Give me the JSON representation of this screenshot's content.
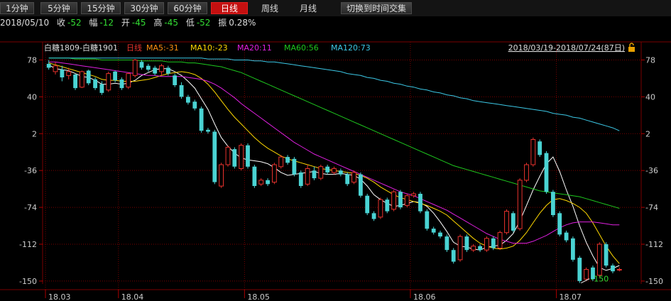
{
  "toolbar": {
    "tabs": [
      "1分钟",
      "5分钟",
      "15分钟",
      "30分钟",
      "60分钟",
      "日线",
      "周线",
      "月线"
    ],
    "active": "日线",
    "switch_label": "切换到时间交集"
  },
  "quote": {
    "date": "2018/05/10",
    "close_label": "收",
    "close_value": "-52",
    "width_label": "幅",
    "width_value": "-12",
    "open_label": "开",
    "open_value": "-45",
    "high_label": "高",
    "high_value": "-45",
    "low_label": "低",
    "low_value": "-52",
    "amp_label": "振",
    "amp_value": "0.28%"
  },
  "legend": {
    "name": "白糖1809-白糖1901",
    "period": "日线",
    "ma5": "MA5:-31",
    "ma10": "MA10:-23",
    "ma20": "MA20:11",
    "ma60": "MA60:56",
    "ma120": "MA120:73",
    "range": "2018/03/19-2018/07/24(87日)"
  },
  "colors": {
    "up": "#e8322d",
    "down": "#4ad3d3",
    "ma5": "#ffffff",
    "ma10": "#ffd800",
    "ma20": "#e020e0",
    "ma60": "#1ec81e",
    "ma120": "#3cc8e6",
    "grid": "#7a0000",
    "axis_text": "#cccccc"
  },
  "icons": {
    "lock": "lock-icon"
  },
  "chart_data": {
    "type": "candlestick",
    "y_ticks": [
      78,
      40,
      2,
      -36,
      -74,
      -112,
      -150
    ],
    "ylim": [
      -153,
      82
    ],
    "x_ticks": [
      "18.03",
      "18.04",
      "18.05",
      "18.06",
      "18.07"
    ],
    "x_tick_index": [
      0,
      11,
      30,
      55,
      77
    ],
    "min_label": "-150",
    "grid": true,
    "candles": [
      [
        74,
        70,
        78,
        68
      ],
      [
        66,
        72,
        76,
        63
      ],
      [
        68,
        60,
        72,
        56
      ],
      [
        62,
        66,
        70,
        58
      ],
      [
        63,
        49,
        64,
        47
      ],
      [
        50,
        66,
        67,
        49
      ],
      [
        67,
        54,
        68,
        52
      ],
      [
        58,
        49,
        60,
        47
      ],
      [
        53,
        44,
        56,
        42
      ],
      [
        47,
        64,
        66,
        45
      ],
      [
        66,
        57,
        67,
        55
      ],
      [
        58,
        49,
        60,
        47
      ],
      [
        50,
        64,
        65,
        48
      ],
      [
        62,
        78,
        79,
        60
      ],
      [
        76,
        70,
        78,
        68
      ],
      [
        72,
        68,
        74,
        66
      ],
      [
        70,
        64,
        72,
        62
      ],
      [
        66,
        72,
        74,
        62
      ],
      [
        70,
        64,
        72,
        62
      ],
      [
        62,
        52,
        64,
        50
      ],
      [
        52,
        40,
        55,
        38
      ],
      [
        40,
        34,
        42,
        32
      ],
      [
        35,
        28,
        37,
        26
      ],
      [
        28,
        5,
        30,
        3
      ],
      [
        6,
        4,
        8,
        2
      ],
      [
        4,
        -48,
        6,
        -50
      ],
      [
        -52,
        -30,
        -28,
        -54
      ],
      [
        -30,
        -12,
        -10,
        -32
      ],
      [
        -14,
        -32,
        -12,
        -34
      ],
      [
        -34,
        -10,
        -8,
        -36
      ],
      [
        -10,
        -32,
        -8,
        -34
      ],
      [
        -32,
        -52,
        -30,
        -54
      ],
      [
        -50,
        -46,
        -44,
        -52
      ],
      [
        -46,
        -50,
        -44,
        -52
      ],
      [
        -48,
        -30,
        -28,
        -50
      ],
      [
        -32,
        -22,
        -20,
        -34
      ],
      [
        -22,
        -28,
        -20,
        -30
      ],
      [
        -24,
        -40,
        -22,
        -42
      ],
      [
        -38,
        -52,
        -36,
        -54
      ],
      [
        -50,
        -34,
        -30,
        -52
      ],
      [
        -36,
        -44,
        -32,
        -46
      ],
      [
        -44,
        -32,
        -30,
        -46
      ],
      [
        -32,
        -38,
        -30,
        -40
      ],
      [
        -38,
        -34,
        -32,
        -40
      ],
      [
        -36,
        -40,
        -34,
        -42
      ],
      [
        -40,
        -50,
        -38,
        -52
      ],
      [
        -48,
        -38,
        -36,
        -50
      ],
      [
        -40,
        -62,
        -38,
        -64
      ],
      [
        -62,
        -80,
        -60,
        -82
      ],
      [
        -80,
        -86,
        -78,
        -88
      ],
      [
        -84,
        -66,
        -64,
        -86
      ],
      [
        -66,
        -78,
        -64,
        -80
      ],
      [
        -76,
        -58,
        -56,
        -78
      ],
      [
        -58,
        -74,
        -56,
        -76
      ],
      [
        -72,
        -62,
        -60,
        -74
      ],
      [
        -62,
        -60,
        -58,
        -64
      ],
      [
        -60,
        -78,
        -58,
        -80
      ],
      [
        -78,
        -96,
        -76,
        -98
      ],
      [
        -96,
        -100,
        -94,
        -102
      ],
      [
        -100,
        -104,
        -98,
        -106
      ],
      [
        -104,
        -118,
        -102,
        -120
      ],
      [
        -118,
        -130,
        -116,
        -132
      ],
      [
        -128,
        -104,
        -102,
        -130
      ],
      [
        -104,
        -118,
        -102,
        -120
      ],
      [
        -118,
        -114,
        -112,
        -120
      ],
      [
        -114,
        -118,
        -112,
        -120
      ],
      [
        -118,
        -106,
        -104,
        -120
      ],
      [
        -106,
        -116,
        -104,
        -118
      ],
      [
        -116,
        -100,
        -98,
        -118
      ],
      [
        -100,
        -78,
        -76,
        -102
      ],
      [
        -80,
        -98,
        -78,
        -100
      ],
      [
        -96,
        -46,
        -44,
        -98
      ],
      [
        -46,
        -30,
        -28,
        -48
      ],
      [
        -30,
        -4,
        -2,
        -32
      ],
      [
        -6,
        -20,
        -4,
        -22
      ],
      [
        -18,
        -58,
        -16,
        -60
      ],
      [
        -58,
        -82,
        -56,
        -84
      ],
      [
        -80,
        -102,
        -78,
        -104
      ],
      [
        -100,
        -108,
        -98,
        -110
      ],
      [
        -106,
        -128,
        -104,
        -130
      ],
      [
        -126,
        -150,
        -124,
        -152
      ],
      [
        -148,
        -138,
        -136,
        -150
      ],
      [
        -136,
        -148,
        -134,
        -150
      ],
      [
        -144,
        -112,
        -110,
        -146
      ],
      [
        -112,
        -134,
        -110,
        -136
      ],
      [
        -134,
        -140,
        -132,
        -142
      ],
      [
        -138,
        -138,
        -136,
        -140
      ]
    ],
    "ma_lines": {
      "MA5": [
        73,
        69,
        68,
        67,
        64,
        61,
        60,
        57,
        53,
        53,
        54,
        53,
        54,
        57,
        62,
        65,
        68,
        69,
        69,
        66,
        62,
        56,
        49,
        38,
        27,
        12,
        -2,
        -11,
        -18,
        -23,
        -25,
        -26,
        -27,
        -29,
        -33,
        -38,
        -41,
        -40,
        -39,
        -38,
        -37,
        -39,
        -40,
        -40,
        -39,
        -40,
        -41,
        -45,
        -52,
        -61,
        -66,
        -70,
        -73,
        -72,
        -70,
        -68,
        -69,
        -73,
        -80,
        -89,
        -99,
        -110,
        -114,
        -115,
        -117,
        -118,
        -115,
        -114,
        -113,
        -108,
        -101,
        -88,
        -72,
        -56,
        -42,
        -29,
        -22,
        -37,
        -56,
        -73,
        -93,
        -110,
        -124,
        -136,
        -139,
        -137,
        -134
      ],
      "MA10": [
        75,
        73,
        71,
        69,
        67,
        65,
        63,
        61,
        58,
        57,
        57,
        56,
        56,
        56,
        57,
        58,
        60,
        62,
        64,
        65,
        66,
        65,
        63,
        59,
        53,
        45,
        36,
        27,
        19,
        12,
        5,
        -2,
        -8,
        -13,
        -17,
        -21,
        -24,
        -26,
        -28,
        -30,
        -32,
        -34,
        -35,
        -36,
        -37,
        -38,
        -39,
        -41,
        -44,
        -48,
        -53,
        -57,
        -61,
        -64,
        -66,
        -68,
        -70,
        -72,
        -75,
        -78,
        -82,
        -88,
        -94,
        -100,
        -106,
        -111,
        -114,
        -116,
        -117,
        -116,
        -114,
        -108,
        -100,
        -90,
        -80,
        -72,
        -66,
        -65,
        -67,
        -70,
        -74,
        -80,
        -90,
        -102,
        -114,
        -124,
        -132
      ],
      "MA20": [
        76,
        76,
        75,
        74,
        73,
        72,
        71,
        70,
        69,
        68,
        67,
        66,
        65,
        64,
        63,
        62,
        62,
        61,
        61,
        61,
        61,
        60,
        59,
        58,
        56,
        53,
        49,
        44,
        39,
        33,
        28,
        23,
        18,
        13,
        8,
        3,
        -2,
        -7,
        -11,
        -15,
        -19,
        -22,
        -25,
        -28,
        -31,
        -34,
        -37,
        -40,
        -43,
        -46,
        -49,
        -52,
        -55,
        -58,
        -60,
        -62,
        -65,
        -68,
        -71,
        -74,
        -77,
        -81,
        -85,
        -89,
        -93,
        -97,
        -101,
        -104,
        -107,
        -109,
        -111,
        -111,
        -111,
        -109,
        -106,
        -103,
        -99,
        -95,
        -92,
        -90,
        -89,
        -89,
        -89,
        -90,
        -91,
        -92,
        -92
      ],
      "MA60": [
        80,
        80,
        80,
        80,
        79,
        79,
        79,
        79,
        78,
        78,
        78,
        78,
        78,
        78,
        77,
        77,
        77,
        77,
        76,
        76,
        76,
        75,
        75,
        74,
        73,
        72,
        71,
        69,
        67,
        65,
        62,
        59,
        56,
        53,
        50,
        47,
        44,
        41,
        38,
        35,
        32,
        29,
        26,
        23,
        20,
        17,
        14,
        11,
        8,
        5,
        2,
        -1,
        -4,
        -7,
        -10,
        -13,
        -16,
        -19,
        -22,
        -25,
        -28,
        -31,
        -33,
        -35,
        -37,
        -39,
        -41,
        -43,
        -45,
        -47,
        -49,
        -51,
        -53,
        -55,
        -57,
        -58,
        -59,
        -60,
        -61,
        -62,
        -63,
        -65,
        -67,
        -69,
        -71,
        -73,
        -75
      ],
      "MA120": [
        80,
        80,
        80,
        80,
        80,
        80,
        80,
        80,
        80,
        80,
        80,
        80,
        80,
        80,
        80,
        80,
        80,
        80,
        80,
        80,
        80,
        80,
        80,
        80,
        79,
        79,
        79,
        79,
        78,
        78,
        78,
        77,
        77,
        76,
        76,
        75,
        74,
        73,
        72,
        71,
        70,
        69,
        68,
        67,
        66,
        64,
        63,
        62,
        60,
        59,
        57,
        56,
        54,
        53,
        51,
        50,
        48,
        47,
        45,
        44,
        42,
        41,
        39,
        38,
        36,
        35,
        34,
        33,
        32,
        31,
        30,
        29,
        28,
        27,
        26,
        25,
        23,
        22,
        21,
        19,
        18,
        16,
        14,
        12,
        10,
        8,
        5
      ]
    }
  }
}
